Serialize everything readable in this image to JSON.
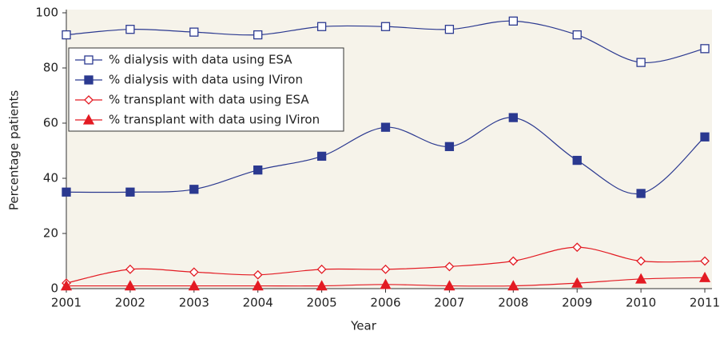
{
  "chart_data": {
    "type": "line",
    "x_label": "Year",
    "y_label": "Percentage patients",
    "categories": [
      "2001",
      "2002",
      "2003",
      "2004",
      "2005",
      "2006",
      "2007",
      "2008",
      "2009",
      "2010",
      "2011"
    ],
    "ylim": [
      0,
      100
    ],
    "yticks": [
      0,
      20,
      40,
      60,
      80,
      100
    ],
    "grid": false,
    "legend": "upper left",
    "series": [
      {
        "name": "% dialysis with data using ESA",
        "color": "#2b3990",
        "marker": "open-square",
        "values": [
          92,
          94,
          93,
          92,
          95,
          95,
          94,
          97,
          92,
          82,
          87
        ]
      },
      {
        "name": "% dialysis with data using IViron",
        "color": "#2b3990",
        "marker": "filled-square",
        "values": [
          35,
          35,
          36,
          43,
          48,
          58.5,
          51.5,
          62,
          46.5,
          34.5,
          55
        ]
      },
      {
        "name": "% transplant with data using ESA",
        "color": "#e31b23",
        "marker": "open-diamond",
        "values": [
          2,
          7,
          6,
          5,
          7,
          7,
          8,
          10,
          15,
          10,
          10
        ]
      },
      {
        "name": "% transplant with data using IViron",
        "color": "#e31b23",
        "marker": "filled-triangle",
        "values": [
          1,
          1,
          1,
          1,
          1,
          1.5,
          1,
          1,
          2,
          3.5,
          4
        ]
      }
    ]
  }
}
